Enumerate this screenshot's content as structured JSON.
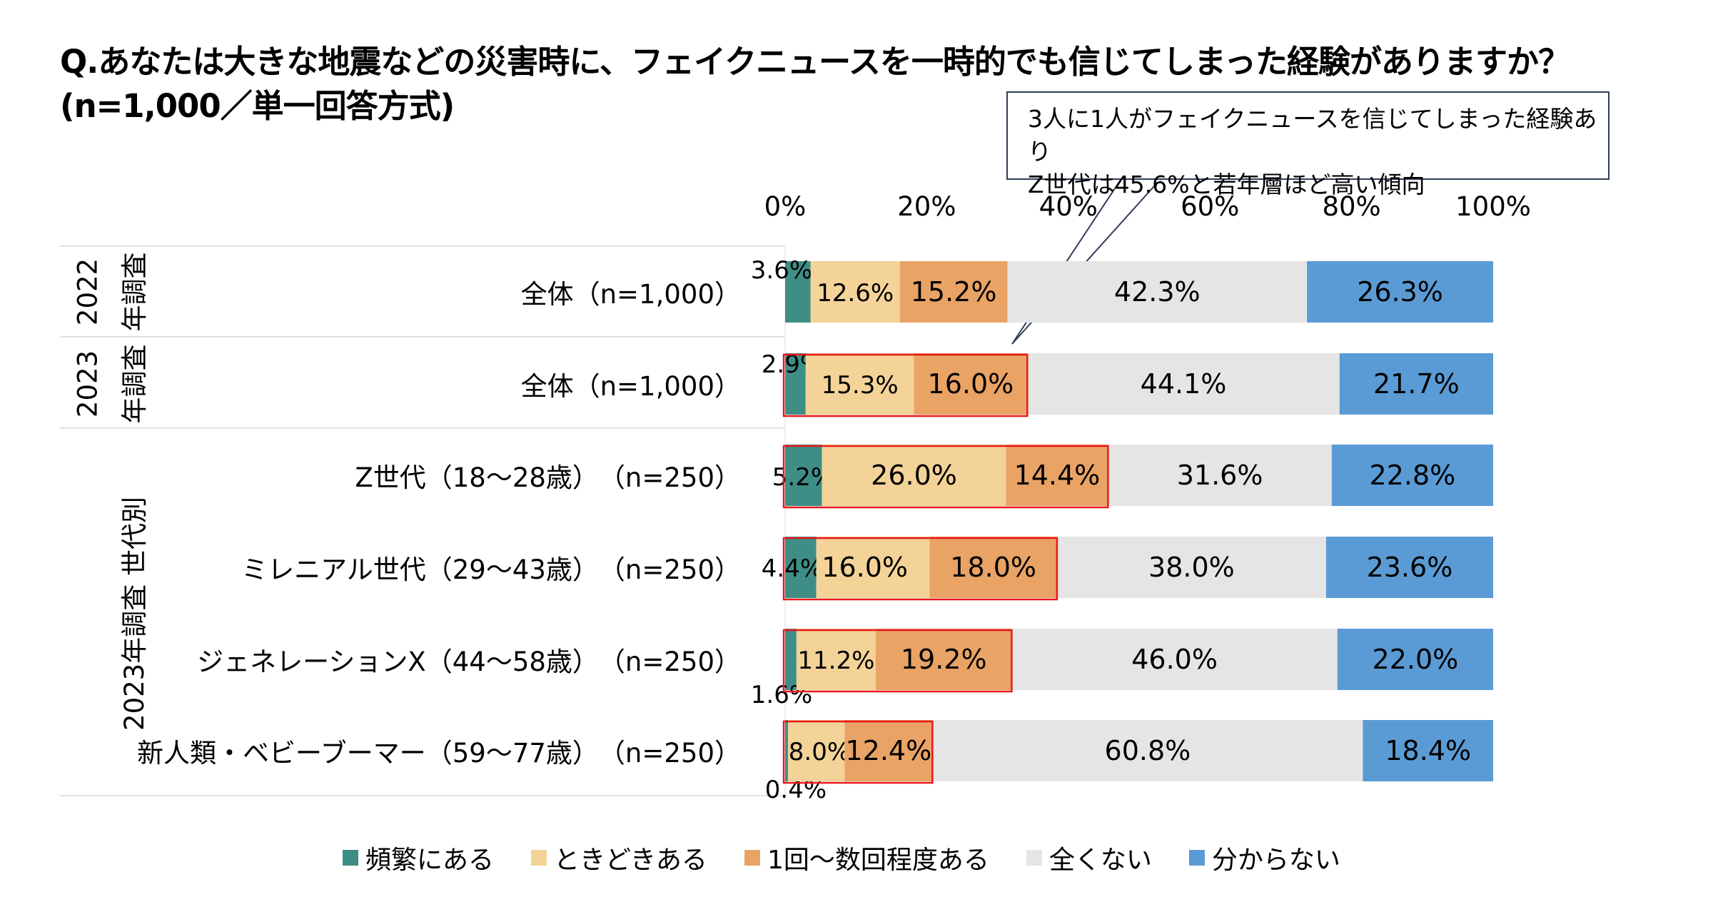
{
  "title_line1": "Q.あなたは大きな地震などの災害時に、フェイクニュースを一時的でも信じてしまった経験がありますか？",
  "title_line2": "(n=1,000／単一回答方式)",
  "callout": {
    "line1": "3人に1人がフェイクニュースを信じてしまった経験あり",
    "line2": "Z世代は45.6%と若年層ほど高い傾向"
  },
  "group_labels": {
    "g2022_a": "2022",
    "g2022_b": "年調査",
    "g2023_a": "2023",
    "g2023_b": "年調査",
    "g2023gen": "2023年調査 世代別"
  },
  "chart_data": {
    "type": "bar",
    "orientation": "horizontal",
    "stacked": true,
    "percent": true,
    "xlim": [
      0,
      100
    ],
    "x_ticks": [
      "0%",
      "20%",
      "40%",
      "60%",
      "80%",
      "100%"
    ],
    "legend_position": "bottom",
    "grid": false,
    "categories": [
      "全体（n=1,000）",
      "全体（n=1,000）",
      "Z世代（18～28歳）　（n=250）",
      "ミレニアル世代（29～43歳）　（n=250）",
      "ジェネレーションX（44～58歳）　（n=250）",
      "新人類・ベビーブーマー（59～77歳）　（n=250）"
    ],
    "series": [
      {
        "name": "頻繁にある",
        "color": "#3e8e86",
        "values": [
          3.6,
          2.9,
          5.2,
          4.4,
          1.6,
          0.4
        ]
      },
      {
        "name": "ときどきある",
        "color": "#f3d398",
        "values": [
          12.6,
          15.3,
          26.0,
          16.0,
          11.2,
          8.0
        ]
      },
      {
        "name": "1回～数回程度ある",
        "color": "#e9a365",
        "values": [
          15.2,
          16.0,
          14.4,
          18.0,
          19.2,
          12.4
        ]
      },
      {
        "name": "全くない",
        "color": "#e5e5e5",
        "values": [
          42.3,
          44.1,
          31.6,
          38.0,
          46.0,
          60.8
        ]
      },
      {
        "name": "分からない",
        "color": "#5b9bd5",
        "values": [
          26.3,
          21.7,
          22.8,
          23.6,
          22.0,
          18.4
        ]
      }
    ],
    "highlight_color": "#e8191b",
    "highlighted_rows": [
      1,
      2,
      3,
      4,
      5
    ]
  }
}
